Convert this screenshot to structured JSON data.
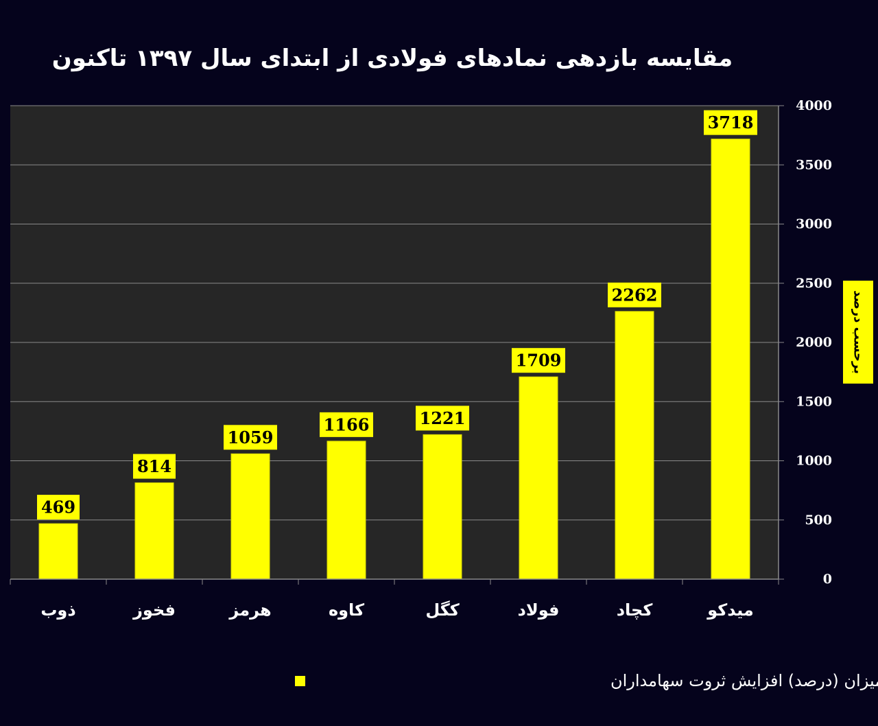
{
  "chart_data": {
    "type": "bar",
    "title": "مقایسه بازدهی نمادهای فولادی از ابتدای سال ۱۳۹۷ تاکنون",
    "ylabel": "برحسب درصد",
    "xlabel": "",
    "categories": [
      "ذوب",
      "فخوز",
      "هرمز",
      "کاوه",
      "کگل",
      "فولاد",
      "کچاد",
      "میدکو"
    ],
    "series": [
      {
        "name": "میزان (درصد) افزایش ثروت سهامداران",
        "values": [
          469,
          814,
          1059,
          1166,
          1221,
          1709,
          2262,
          3718
        ]
      }
    ],
    "ylim": [
      0,
      4000
    ],
    "yticks": [
      "0",
      "500",
      "1000",
      "1500",
      "2000",
      "2500",
      "3000",
      "3500",
      "4000"
    ],
    "grid": true,
    "legend_position": "bottom",
    "colors": {
      "background": "#05031c",
      "plot_area": "#262626",
      "bar": "#ffff00",
      "bar_edge": "#d8d800",
      "label_box": "#ffff00",
      "gridline": "#8a8a8a",
      "text": "#ffffff"
    }
  }
}
